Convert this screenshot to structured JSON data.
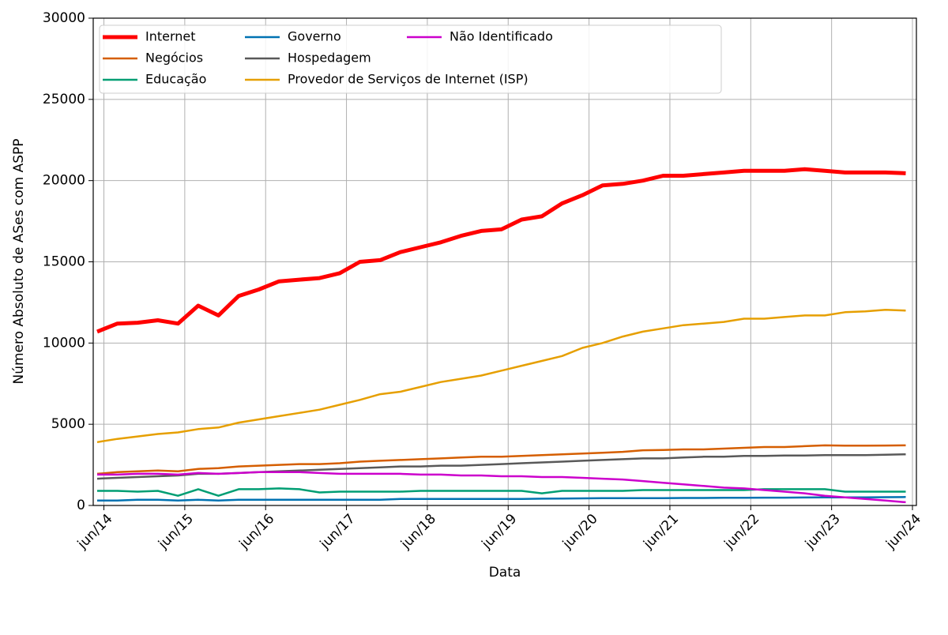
{
  "chart_data": {
    "type": "line",
    "xlabel": "Data",
    "ylabel": "Número Absoluto de ASes com ASPP",
    "x": [
      "2014-05",
      "2014-08",
      "2014-11",
      "2015-02",
      "2015-05",
      "2015-08",
      "2015-11",
      "2016-02",
      "2016-05",
      "2016-08",
      "2016-11",
      "2017-02",
      "2017-05",
      "2017-08",
      "2017-11",
      "2018-02",
      "2018-05",
      "2018-08",
      "2018-11",
      "2019-02",
      "2019-05",
      "2019-08",
      "2019-11",
      "2020-02",
      "2020-05",
      "2020-08",
      "2020-11",
      "2021-02",
      "2021-05",
      "2021-08",
      "2021-11",
      "2022-02",
      "2022-05",
      "2022-08",
      "2022-11",
      "2023-02",
      "2023-05",
      "2023-08",
      "2023-11",
      "2024-02",
      "2024-05"
    ],
    "xlim": [
      "2014-05",
      "2024-06"
    ],
    "xticks": [
      {
        "value": "2014-06",
        "label": "jun/14"
      },
      {
        "value": "2015-06",
        "label": "jun/15"
      },
      {
        "value": "2016-06",
        "label": "jun/16"
      },
      {
        "value": "2017-06",
        "label": "jun/17"
      },
      {
        "value": "2018-06",
        "label": "jun/18"
      },
      {
        "value": "2019-06",
        "label": "jun/19"
      },
      {
        "value": "2020-06",
        "label": "jun/20"
      },
      {
        "value": "2021-06",
        "label": "jun/21"
      },
      {
        "value": "2022-06",
        "label": "jun/22"
      },
      {
        "value": "2023-06",
        "label": "jun/23"
      },
      {
        "value": "2024-06",
        "label": "jun/24"
      }
    ],
    "ylim": [
      0,
      30000
    ],
    "yticks": [
      0,
      5000,
      10000,
      15000,
      20000,
      25000,
      30000
    ],
    "grid": true,
    "legend": "upper left",
    "series": [
      {
        "name": "Internet",
        "color": "#ff0000",
        "values": [
          10700,
          11200,
          11250,
          11400,
          11200,
          12300,
          11700,
          12900,
          13300,
          13800,
          13900,
          14000,
          14300,
          15000,
          15100,
          15600,
          15900,
          16200,
          16600,
          16900,
          17000,
          17600,
          17800,
          18600,
          19100,
          19700,
          19800,
          20000,
          20300,
          20300,
          20400,
          20500,
          20600,
          20600,
          20600,
          20700,
          20600,
          20500,
          20500,
          20500,
          20450
        ]
      },
      {
        "name": "Negócios",
        "color": "#d55e00",
        "values": [
          1950,
          2050,
          2100,
          2150,
          2100,
          2250,
          2300,
          2400,
          2450,
          2500,
          2550,
          2550,
          2600,
          2700,
          2750,
          2800,
          2850,
          2900,
          2950,
          3000,
          3000,
          3050,
          3100,
          3150,
          3200,
          3250,
          3300,
          3400,
          3420,
          3450,
          3450,
          3500,
          3550,
          3600,
          3600,
          3650,
          3700,
          3680,
          3680,
          3690,
          3700
        ]
      },
      {
        "name": "Educação",
        "color": "#009e73",
        "values": [
          900,
          900,
          850,
          900,
          600,
          1000,
          600,
          1000,
          1000,
          1050,
          1000,
          800,
          850,
          850,
          850,
          850,
          900,
          900,
          900,
          900,
          900,
          900,
          750,
          900,
          900,
          900,
          900,
          950,
          950,
          950,
          950,
          950,
          950,
          1000,
          1000,
          1000,
          1000,
          850,
          850,
          850,
          850
        ]
      },
      {
        "name": "Governo",
        "color": "#0072b2",
        "values": [
          300,
          300,
          350,
          350,
          300,
          350,
          300,
          350,
          350,
          350,
          350,
          350,
          350,
          350,
          350,
          400,
          400,
          400,
          400,
          400,
          400,
          400,
          420,
          430,
          440,
          450,
          450,
          450,
          450,
          460,
          460,
          470,
          470,
          480,
          480,
          490,
          500,
          500,
          500,
          510,
          520
        ]
      },
      {
        "name": "Hospedagem",
        "color": "#595959",
        "values": [
          1650,
          1700,
          1750,
          1800,
          1850,
          1950,
          1950,
          2000,
          2050,
          2100,
          2150,
          2200,
          2250,
          2300,
          2350,
          2400,
          2400,
          2450,
          2450,
          2500,
          2550,
          2600,
          2650,
          2700,
          2750,
          2800,
          2850,
          2900,
          2900,
          2950,
          3000,
          3000,
          3050,
          3050,
          3080,
          3080,
          3100,
          3100,
          3100,
          3120,
          3150
        ]
      },
      {
        "name": "Provedor de Serviços de Internet (ISP)",
        "color": "#e69f00",
        "values": [
          3900,
          4100,
          4250,
          4400,
          4500,
          4700,
          4800,
          5100,
          5300,
          5500,
          5700,
          5900,
          6200,
          6500,
          6850,
          7000,
          7300,
          7600,
          7800,
          8000,
          8300,
          8600,
          8900,
          9200,
          9700,
          10000,
          10400,
          10700,
          10900,
          11100,
          11200,
          11300,
          11500,
          11500,
          11600,
          11700,
          11700,
          11900,
          11950,
          12050,
          12000
        ]
      },
      {
        "name": "Não Identificado",
        "color": "#cc00cc",
        "values": [
          1900,
          1900,
          1950,
          1950,
          1900,
          2000,
          1950,
          2000,
          2050,
          2050,
          2050,
          2000,
          1950,
          1950,
          1950,
          1950,
          1900,
          1900,
          1850,
          1850,
          1800,
          1800,
          1750,
          1750,
          1700,
          1650,
          1600,
          1500,
          1400,
          1300,
          1200,
          1100,
          1050,
          950,
          850,
          750,
          600,
          500,
          400,
          300,
          200
        ]
      }
    ]
  }
}
